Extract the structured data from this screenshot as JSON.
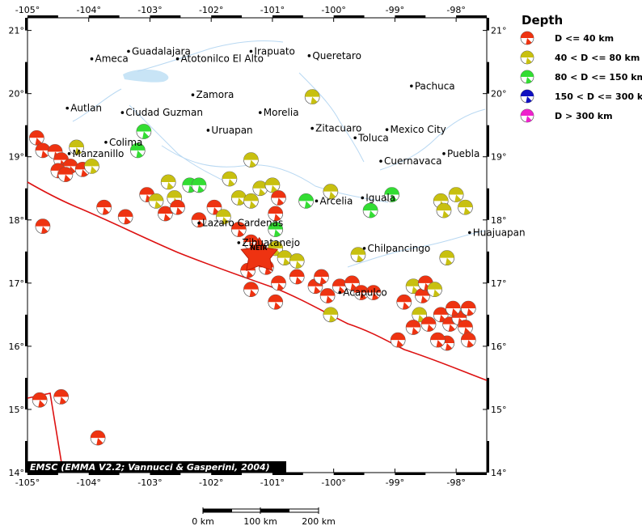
{
  "map": {
    "lon_range": [
      -105,
      -97.5
    ],
    "lat_range": [
      14,
      21.2
    ],
    "lon_ticks": [
      "-105°",
      "-104°",
      "-103°",
      "-102°",
      "-101°",
      "-100°",
      "-99°",
      "-98°"
    ],
    "lat_ticks": [
      "14°",
      "15°",
      "16°",
      "17°",
      "18°",
      "19°",
      "20°",
      "21°"
    ],
    "cities": [
      {
        "name": "Guadalajara",
        "lon": -103.35,
        "lat": 20.67
      },
      {
        "name": "Ameca",
        "lon": -103.95,
        "lat": 20.55
      },
      {
        "name": "Atotonilco El Alto",
        "lon": -102.55,
        "lat": 20.55
      },
      {
        "name": "Irapuato",
        "lon": -101.35,
        "lat": 20.67
      },
      {
        "name": "Queretaro",
        "lon": -100.4,
        "lat": 20.6
      },
      {
        "name": "Pachuca",
        "lon": -98.73,
        "lat": 20.12
      },
      {
        "name": "Zamora",
        "lon": -102.3,
        "lat": 19.98
      },
      {
        "name": "Autlan",
        "lon": -104.35,
        "lat": 19.77
      },
      {
        "name": "Ciudad Guzman",
        "lon": -103.45,
        "lat": 19.7
      },
      {
        "name": "Morelia",
        "lon": -101.2,
        "lat": 19.7
      },
      {
        "name": "Uruapan",
        "lon": -102.05,
        "lat": 19.42
      },
      {
        "name": "Zitacuaro",
        "lon": -100.35,
        "lat": 19.45
      },
      {
        "name": "Toluca",
        "lon": -99.65,
        "lat": 19.3
      },
      {
        "name": "Mexico City",
        "lon": -99.13,
        "lat": 19.43
      },
      {
        "name": "Colima",
        "lon": -103.72,
        "lat": 19.23
      },
      {
        "name": "Manzanillo",
        "lon": -104.32,
        "lat": 19.05
      },
      {
        "name": "Puebla",
        "lon": -98.2,
        "lat": 19.05
      },
      {
        "name": "Cuernavaca",
        "lon": -99.23,
        "lat": 18.93
      },
      {
        "name": "Arcelia",
        "lon": -100.28,
        "lat": 18.3
      },
      {
        "name": "Iguala",
        "lon": -99.53,
        "lat": 18.35
      },
      {
        "name": "Lazaro Cardenas",
        "lon": -102.2,
        "lat": 17.95
      },
      {
        "name": "Zihuatanejo",
        "lon": -101.55,
        "lat": 17.64
      },
      {
        "name": "Chilpancingo",
        "lon": -99.5,
        "lat": 17.55
      },
      {
        "name": "Acapulco",
        "lon": -99.9,
        "lat": 16.85
      },
      {
        "name": "Huajuapan",
        "lon": -97.78,
        "lat": 17.8
      }
    ],
    "epicenter_label": "NEIR",
    "epicenter": {
      "lon": -101.1,
      "lat": 17.52
    },
    "credit": "EMSC (EMMA V2.2; Vannucci & Gasperini, 2004)",
    "scale_labels": [
      "0 km",
      "100 km",
      "200 km"
    ],
    "events": [
      {
        "lon": -104.85,
        "lat": 19.3,
        "class": 1
      },
      {
        "lon": -104.75,
        "lat": 19.1,
        "class": 1
      },
      {
        "lon": -104.55,
        "lat": 19.08,
        "class": 1
      },
      {
        "lon": -104.45,
        "lat": 18.95,
        "class": 1
      },
      {
        "lon": -104.3,
        "lat": 18.85,
        "class": 1
      },
      {
        "lon": -104.5,
        "lat": 18.78,
        "class": 1
      },
      {
        "lon": -104.38,
        "lat": 18.72,
        "class": 1
      },
      {
        "lon": -104.1,
        "lat": 18.8,
        "class": 1
      },
      {
        "lon": -103.95,
        "lat": 18.85,
        "class": 2
      },
      {
        "lon": -104.2,
        "lat": 19.15,
        "class": 2
      },
      {
        "lon": -103.1,
        "lat": 19.4,
        "class": 3
      },
      {
        "lon": -103.2,
        "lat": 19.1,
        "class": 3
      },
      {
        "lon": -104.75,
        "lat": 17.9,
        "class": 1
      },
      {
        "lon": -103.75,
        "lat": 18.2,
        "class": 1
      },
      {
        "lon": -103.4,
        "lat": 18.05,
        "class": 1
      },
      {
        "lon": -103.05,
        "lat": 18.4,
        "class": 1
      },
      {
        "lon": -102.9,
        "lat": 18.3,
        "class": 2
      },
      {
        "lon": -102.7,
        "lat": 18.6,
        "class": 2
      },
      {
        "lon": -102.6,
        "lat": 18.35,
        "class": 2
      },
      {
        "lon": -102.75,
        "lat": 18.1,
        "class": 1
      },
      {
        "lon": -102.55,
        "lat": 18.2,
        "class": 1
      },
      {
        "lon": -102.35,
        "lat": 18.55,
        "class": 3
      },
      {
        "lon": -102.2,
        "lat": 18.55,
        "class": 3
      },
      {
        "lon": -102.2,
        "lat": 18.0,
        "class": 1
      },
      {
        "lon": -101.95,
        "lat": 18.2,
        "class": 1
      },
      {
        "lon": -101.8,
        "lat": 18.05,
        "class": 2
      },
      {
        "lon": -101.7,
        "lat": 18.65,
        "class": 2
      },
      {
        "lon": -101.55,
        "lat": 18.35,
        "class": 2
      },
      {
        "lon": -101.35,
        "lat": 18.3,
        "class": 2
      },
      {
        "lon": -101.2,
        "lat": 18.5,
        "class": 2
      },
      {
        "lon": -101.0,
        "lat": 18.55,
        "class": 2
      },
      {
        "lon": -100.9,
        "lat": 18.35,
        "class": 1
      },
      {
        "lon": -101.35,
        "lat": 18.95,
        "class": 2
      },
      {
        "lon": -100.95,
        "lat": 18.1,
        "class": 1
      },
      {
        "lon": -100.95,
        "lat": 17.85,
        "class": 3
      },
      {
        "lon": -101.55,
        "lat": 17.85,
        "class": 1
      },
      {
        "lon": -101.35,
        "lat": 17.65,
        "class": 1
      },
      {
        "lon": -101.2,
        "lat": 17.45,
        "class": 1
      },
      {
        "lon": -100.95,
        "lat": 17.55,
        "class": 2
      },
      {
        "lon": -100.8,
        "lat": 17.4,
        "class": 2
      },
      {
        "lon": -100.6,
        "lat": 17.35,
        "class": 2
      },
      {
        "lon": -101.1,
        "lat": 17.25,
        "class": 1
      },
      {
        "lon": -101.4,
        "lat": 17.2,
        "class": 1
      },
      {
        "lon": -100.9,
        "lat": 17.0,
        "class": 1
      },
      {
        "lon": -101.35,
        "lat": 16.9,
        "class": 1
      },
      {
        "lon": -100.95,
        "lat": 16.7,
        "class": 1
      },
      {
        "lon": -100.6,
        "lat": 17.1,
        "class": 1
      },
      {
        "lon": -100.3,
        "lat": 16.95,
        "class": 1
      },
      {
        "lon": -100.2,
        "lat": 17.1,
        "class": 1
      },
      {
        "lon": -100.1,
        "lat": 16.8,
        "class": 1
      },
      {
        "lon": -99.9,
        "lat": 16.95,
        "class": 1
      },
      {
        "lon": -99.7,
        "lat": 17.0,
        "class": 1
      },
      {
        "lon": -99.55,
        "lat": 16.85,
        "class": 1
      },
      {
        "lon": -99.35,
        "lat": 16.85,
        "class": 1
      },
      {
        "lon": -100.05,
        "lat": 16.5,
        "class": 2
      },
      {
        "lon": -99.6,
        "lat": 17.45,
        "class": 2
      },
      {
        "lon": -100.35,
        "lat": 19.95,
        "class": 2
      },
      {
        "lon": -100.05,
        "lat": 18.45,
        "class": 2
      },
      {
        "lon": -100.45,
        "lat": 18.3,
        "class": 3
      },
      {
        "lon": -99.4,
        "lat": 18.15,
        "class": 3
      },
      {
        "lon": -99.05,
        "lat": 18.4,
        "class": 3
      },
      {
        "lon": -98.25,
        "lat": 18.3,
        "class": 2
      },
      {
        "lon": -98.2,
        "lat": 18.15,
        "class": 2
      },
      {
        "lon": -98.0,
        "lat": 18.4,
        "class": 2
      },
      {
        "lon": -97.85,
        "lat": 18.2,
        "class": 2
      },
      {
        "lon": -98.15,
        "lat": 17.4,
        "class": 2
      },
      {
        "lon": -98.85,
        "lat": 16.7,
        "class": 1
      },
      {
        "lon": -98.7,
        "lat": 16.95,
        "class": 2
      },
      {
        "lon": -98.55,
        "lat": 16.8,
        "class": 1
      },
      {
        "lon": -98.5,
        "lat": 17.0,
        "class": 1
      },
      {
        "lon": -98.35,
        "lat": 16.9,
        "class": 2
      },
      {
        "lon": -98.6,
        "lat": 16.5,
        "class": 2
      },
      {
        "lon": -98.7,
        "lat": 16.3,
        "class": 1
      },
      {
        "lon": -98.45,
        "lat": 16.35,
        "class": 1
      },
      {
        "lon": -98.25,
        "lat": 16.5,
        "class": 1
      },
      {
        "lon": -98.1,
        "lat": 16.35,
        "class": 1
      },
      {
        "lon": -97.95,
        "lat": 16.45,
        "class": 1
      },
      {
        "lon": -98.05,
        "lat": 16.6,
        "class": 1
      },
      {
        "lon": -97.8,
        "lat": 16.6,
        "class": 1
      },
      {
        "lon": -97.85,
        "lat": 16.3,
        "class": 1
      },
      {
        "lon": -97.8,
        "lat": 16.1,
        "class": 1
      },
      {
        "lon": -98.15,
        "lat": 16.05,
        "class": 1
      },
      {
        "lon": -98.95,
        "lat": 16.1,
        "class": 1
      },
      {
        "lon": -98.3,
        "lat": 16.1,
        "class": 1
      },
      {
        "lon": -104.8,
        "lat": 15.15,
        "class": 1
      },
      {
        "lon": -104.45,
        "lat": 15.2,
        "class": 1
      },
      {
        "lon": -103.85,
        "lat": 14.55,
        "class": 1
      }
    ],
    "colors": {
      "c1": "#ee3311",
      "c2": "#c8c010",
      "c3": "#33dd33",
      "c4": "#1010c0",
      "c5": "#ee22cc",
      "trench": "#dd1111",
      "water": "#c8e4f6",
      "river": "#b8d8f2"
    }
  },
  "legend": {
    "title": "Depth",
    "items": [
      {
        "label": "D <= 40 km",
        "color": "#ee3311"
      },
      {
        "label": "40 < D <= 80 km",
        "color": "#c8c010"
      },
      {
        "label": "80 < D <= 150 km",
        "color": "#33dd33"
      },
      {
        "label": "150 < D <= 300 km",
        "color": "#1010c0"
      },
      {
        "label": "D > 300 km",
        "color": "#ee22cc"
      }
    ]
  }
}
